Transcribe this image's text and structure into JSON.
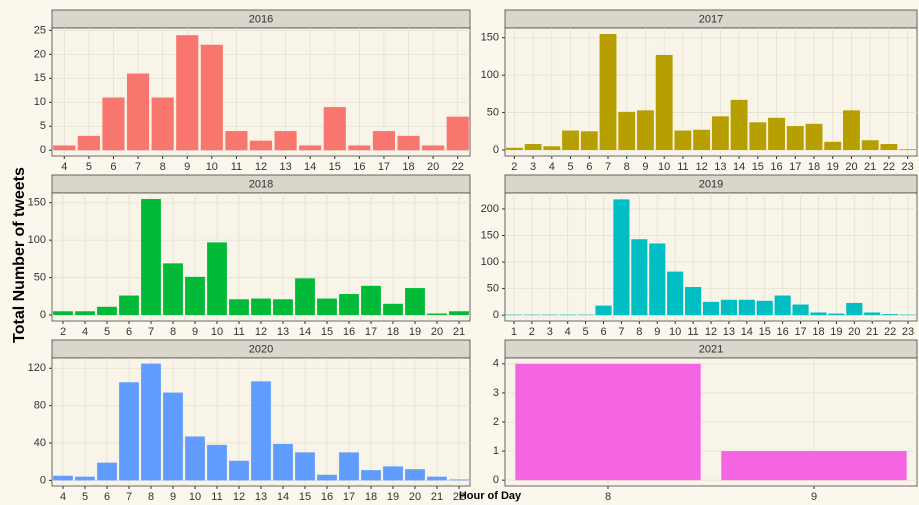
{
  "ylabel": "Total Number of tweets",
  "xlabel": "Hour of Day",
  "chart_data": [
    {
      "type": "bar",
      "title": "2016",
      "color": "#f8766d",
      "grid": true,
      "categories": [
        "4",
        "5",
        "6",
        "7",
        "8",
        "9",
        "10",
        "11",
        "12",
        "13",
        "14",
        "15",
        "16",
        "17",
        "18",
        "20",
        "22"
      ],
      "values": [
        1,
        3,
        11,
        16,
        11,
        24,
        22,
        4,
        2,
        4,
        1,
        9,
        1,
        4,
        3,
        1,
        7
      ],
      "ylim": [
        -1.2,
        25.5
      ],
      "yticks": [
        0,
        5,
        10,
        15,
        20,
        25
      ]
    },
    {
      "type": "bar",
      "title": "2017",
      "color": "#b79f00",
      "grid": true,
      "categories": [
        "2",
        "3",
        "4",
        "5",
        "6",
        "7",
        "8",
        "9",
        "10",
        "11",
        "12",
        "13",
        "14",
        "15",
        "16",
        "17",
        "18",
        "19",
        "20",
        "21",
        "22",
        "23"
      ],
      "values": [
        3,
        8,
        5,
        26,
        25,
        155,
        51,
        53,
        127,
        26,
        27,
        45,
        67,
        37,
        43,
        32,
        35,
        11,
        53,
        13,
        8,
        1
      ],
      "ylim": [
        -8,
        163
      ],
      "yticks": [
        0,
        50,
        100,
        150
      ]
    },
    {
      "type": "bar",
      "title": "2018",
      "color": "#00ba38",
      "grid": true,
      "categories": [
        "2",
        "4",
        "5",
        "6",
        "7",
        "8",
        "9",
        "10",
        "11",
        "12",
        "13",
        "14",
        "15",
        "16",
        "17",
        "18",
        "19",
        "20",
        "21"
      ],
      "values": [
        5,
        5,
        11,
        26,
        155,
        69,
        51,
        97,
        21,
        22,
        21,
        49,
        22,
        28,
        39,
        15,
        36,
        2,
        5
      ],
      "ylim": [
        -8,
        163
      ],
      "yticks": [
        0,
        50,
        100,
        150
      ]
    },
    {
      "type": "bar",
      "title": "2019",
      "color": "#00bfc4",
      "grid": true,
      "categories": [
        "1",
        "2",
        "3",
        "4",
        "5",
        "6",
        "7",
        "8",
        "9",
        "10",
        "11",
        "12",
        "13",
        "14",
        "15",
        "16",
        "17",
        "18",
        "19",
        "20",
        "21",
        "22",
        "23"
      ],
      "values": [
        1,
        1,
        1,
        1,
        1,
        18,
        218,
        143,
        135,
        82,
        53,
        25,
        29,
        29,
        27,
        37,
        20,
        5,
        3,
        23,
        5,
        2,
        1
      ],
      "ylim": [
        -11,
        230
      ],
      "yticks": [
        0,
        50,
        100,
        150,
        200
      ]
    },
    {
      "type": "bar",
      "title": "2020",
      "color": "#619cff",
      "grid": true,
      "categories": [
        "4",
        "5",
        "6",
        "7",
        "8",
        "9",
        "10",
        "11",
        "12",
        "13",
        "14",
        "15",
        "16",
        "17",
        "18",
        "19",
        "20",
        "21",
        "22"
      ],
      "values": [
        5,
        4,
        19,
        105,
        125,
        94,
        47,
        38,
        21,
        106,
        39,
        30,
        6,
        30,
        11,
        15,
        12,
        4,
        1
      ],
      "ylim": [
        -6,
        131
      ],
      "yticks": [
        0,
        40,
        80,
        120
      ]
    },
    {
      "type": "bar",
      "title": "2021",
      "color": "#f564e3",
      "grid": true,
      "categories": [
        "8",
        "9"
      ],
      "values": [
        4,
        1
      ],
      "ylim": [
        -0.2,
        4.2
      ],
      "yticks": [
        0,
        1,
        2,
        3,
        4
      ]
    }
  ]
}
